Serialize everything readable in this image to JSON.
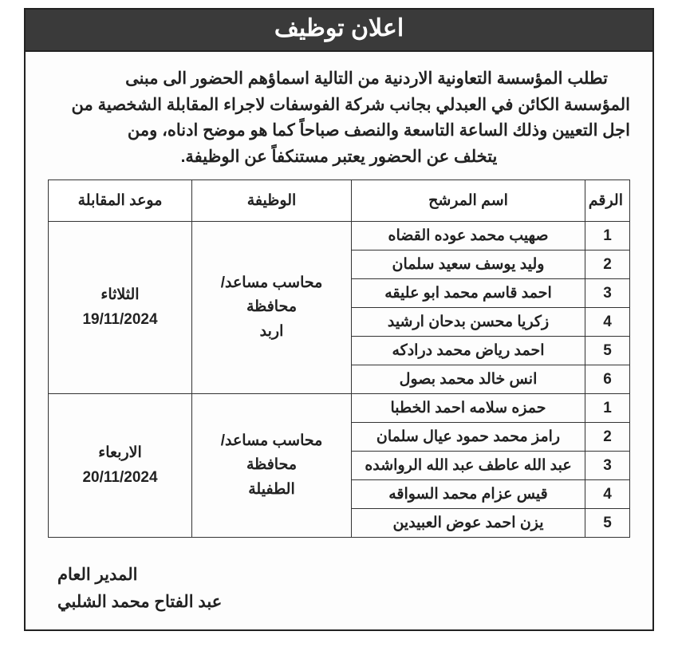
{
  "colors": {
    "title_bg": "#3a3a3a",
    "title_fg": "#ffffff",
    "border": "#222222",
    "text": "#222222",
    "page_bg": "#ffffff"
  },
  "title": "اعلان توظيف",
  "paragraph": {
    "line1": "تطلب المؤسسة التعاونية الاردنية من التالية اسماؤهم الحضور الى مبنى",
    "line2": "المؤسسة الكائن في العبدلي بجانب شركة الفوسفات لاجراء المقابلة الشخصية من",
    "line3": "اجل التعيين وذلك الساعة التاسعة والنصف صباحاً كما هو موضح ادناه، ومن",
    "line4": "يتخلف عن الحضور يعتبر مستنكفاً عن الوظيفة."
  },
  "table": {
    "headers": {
      "num": "الرقم",
      "name": "اسم المرشح",
      "job": "الوظيفة",
      "date": "موعد المقابلة"
    },
    "groups": [
      {
        "job": "محاسب مساعد/ محافظة اربد",
        "date_day": "الثلاثاء",
        "date_val": "19/11/2024",
        "rows": [
          {
            "num": "1",
            "name": "صهيب محمد عوده القضاه"
          },
          {
            "num": "2",
            "name": "وليد يوسف سعيد سلمان"
          },
          {
            "num": "3",
            "name": "احمد قاسم محمد ابو عليقه"
          },
          {
            "num": "4",
            "name": "زكريا محسن بدحان ارشيد"
          },
          {
            "num": "5",
            "name": "احمد رياض محمد درادكه"
          },
          {
            "num": "6",
            "name": "انس خالد محمد بصول"
          }
        ]
      },
      {
        "job": "محاسب مساعد/ محافظة الطفيلة",
        "date_day": "الاربعاء",
        "date_val": "20/11/2024",
        "rows": [
          {
            "num": "1",
            "name": "حمزه سلامه احمد الخطبا"
          },
          {
            "num": "2",
            "name": "رامز محمد حمود عيال سلمان"
          },
          {
            "num": "3",
            "name": "عبد الله عاطف عبد الله الرواشده"
          },
          {
            "num": "4",
            "name": "قيس عزام محمد السواقه"
          },
          {
            "num": "5",
            "name": "يزن احمد عوض العبيدين"
          }
        ]
      }
    ]
  },
  "signature": {
    "title": "المدير العام",
    "name": "عبد الفتاح محمد الشلبي"
  }
}
